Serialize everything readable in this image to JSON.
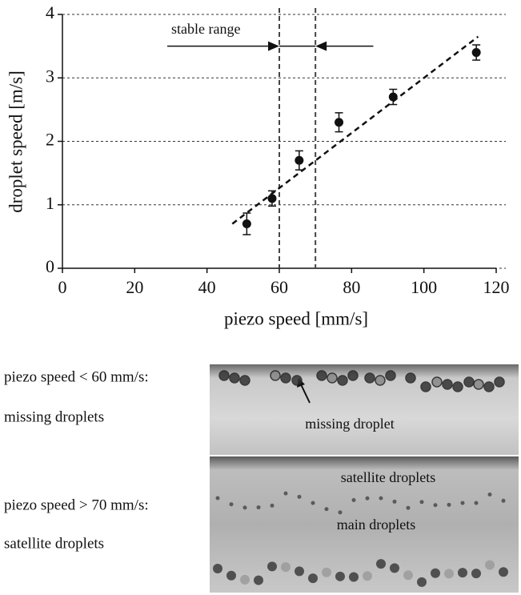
{
  "chart_data": {
    "type": "scatter",
    "xlabel": "piezo speed [mm/s]",
    "ylabel": "droplet speed [m/s]",
    "x": [
      51,
      58,
      65.5,
      76.5,
      91.5,
      114.5
    ],
    "values": [
      0.7,
      1.1,
      1.7,
      2.3,
      2.7,
      3.4
    ],
    "errors": [
      0.17,
      0.12,
      0.15,
      0.15,
      0.12,
      0.12
    ],
    "color": "#111111",
    "trendline": {
      "x": [
        47,
        115
      ],
      "y": [
        0.7,
        3.65
      ]
    },
    "vlines": [
      60,
      70
    ],
    "annotation": {
      "text": "stable range",
      "y": 3.5,
      "arrows": [
        [
          29,
          60
        ],
        [
          86,
          70
        ]
      ]
    },
    "xlim": [
      0,
      120
    ],
    "xticks": [
      0,
      20,
      40,
      60,
      80,
      100,
      120
    ],
    "ylim": [
      0,
      4
    ],
    "yticks": [
      0,
      1,
      2,
      3,
      4
    ],
    "grid": true
  },
  "panels": {
    "left_labels": [
      "piezo speed < 60 mm/s:",
      "missing droplets",
      "piezo speed > 70 mm/s:",
      "satellite droplets"
    ],
    "missing_label": "missing droplet",
    "satellite_label": "satellite droplets",
    "main_label": "main droplets"
  }
}
